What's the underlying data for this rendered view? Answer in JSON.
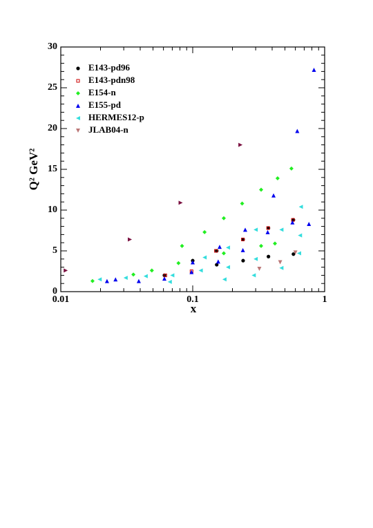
{
  "chart_data": {
    "type": "scatter",
    "x_label": "x",
    "y_label": "Q² GeV²",
    "xlim": [
      0.01,
      1
    ],
    "ylim": [
      0,
      30
    ],
    "xscale": "log",
    "xticks": [
      0.01,
      0.1,
      1
    ],
    "yticks": [
      0,
      5,
      10,
      15,
      20,
      25,
      30
    ],
    "legend": "upper left",
    "series": [
      {
        "name": "E143-pd96",
        "color": "#000000",
        "marker": "circle",
        "x": [
          0.061,
          0.1,
          0.152,
          0.152,
          0.241,
          0.241,
          0.375,
          0.375,
          0.58,
          0.58
        ],
        "values": [
          2.0,
          3.8,
          5.0,
          3.3,
          6.4,
          3.8,
          7.8,
          4.3,
          8.8,
          4.6
        ]
      },
      {
        "name": "E143-pdn98",
        "color": "#cc0000",
        "marker": "square",
        "x": [
          0.062,
          0.098,
          0.15,
          0.24,
          0.373,
          0.575
        ],
        "values": [
          2.0,
          2.5,
          5.0,
          6.4,
          7.8,
          8.8
        ]
      },
      {
        "name": "E154-n",
        "color": "#22ee22",
        "marker": "diamond",
        "x": [
          0.0174,
          0.0355,
          0.049,
          0.078,
          0.083,
          0.123,
          0.172,
          0.172,
          0.237,
          0.33,
          0.33,
          0.42,
          0.44,
          0.56
        ],
        "values": [
          1.3,
          2.1,
          2.6,
          3.5,
          5.6,
          7.3,
          9.0,
          4.7,
          10.8,
          12.5,
          5.6,
          5.9,
          13.9,
          15.1
        ]
      },
      {
        "name": "E155-pd",
        "color": "#0000ee",
        "marker": "triangle-up",
        "x": [
          0.0224,
          0.026,
          0.039,
          0.061,
          0.098,
          0.1,
          0.156,
          0.16,
          0.24,
          0.25,
          0.37,
          0.41,
          0.57,
          0.62,
          0.76,
          0.83
        ],
        "values": [
          1.3,
          1.5,
          1.3,
          1.6,
          2.4,
          3.6,
          3.7,
          5.5,
          5.1,
          7.6,
          7.3,
          11.8,
          8.5,
          19.7,
          8.3,
          27.2
        ]
      },
      {
        "name": "HERMES12-p",
        "color": "#33dddd",
        "marker": "triangle-left",
        "x": [
          0.0197,
          0.031,
          0.044,
          0.067,
          0.07,
          0.115,
          0.123,
          0.174,
          0.185,
          0.185,
          0.29,
          0.3,
          0.3,
          0.47,
          0.47,
          0.64,
          0.65,
          0.66
        ],
        "values": [
          1.5,
          1.7,
          1.9,
          1.2,
          2.0,
          2.6,
          4.2,
          1.5,
          3.0,
          5.4,
          2.0,
          7.6,
          4.0,
          2.9,
          7.6,
          4.7,
          6.9,
          10.4
        ]
      },
      {
        "name": "JLAB04-n",
        "color": "#bb7777",
        "marker": "triangle-down",
        "x": [
          0.32,
          0.46,
          0.6
        ],
        "values": [
          2.8,
          3.6,
          4.8
        ]
      },
      {
        "color": "#7a1040",
        "marker": "triangle-right",
        "x": [
          0.0109,
          0.0334,
          0.081,
          0.23
        ],
        "values": [
          2.6,
          6.4,
          10.9,
          18.0
        ]
      }
    ]
  }
}
